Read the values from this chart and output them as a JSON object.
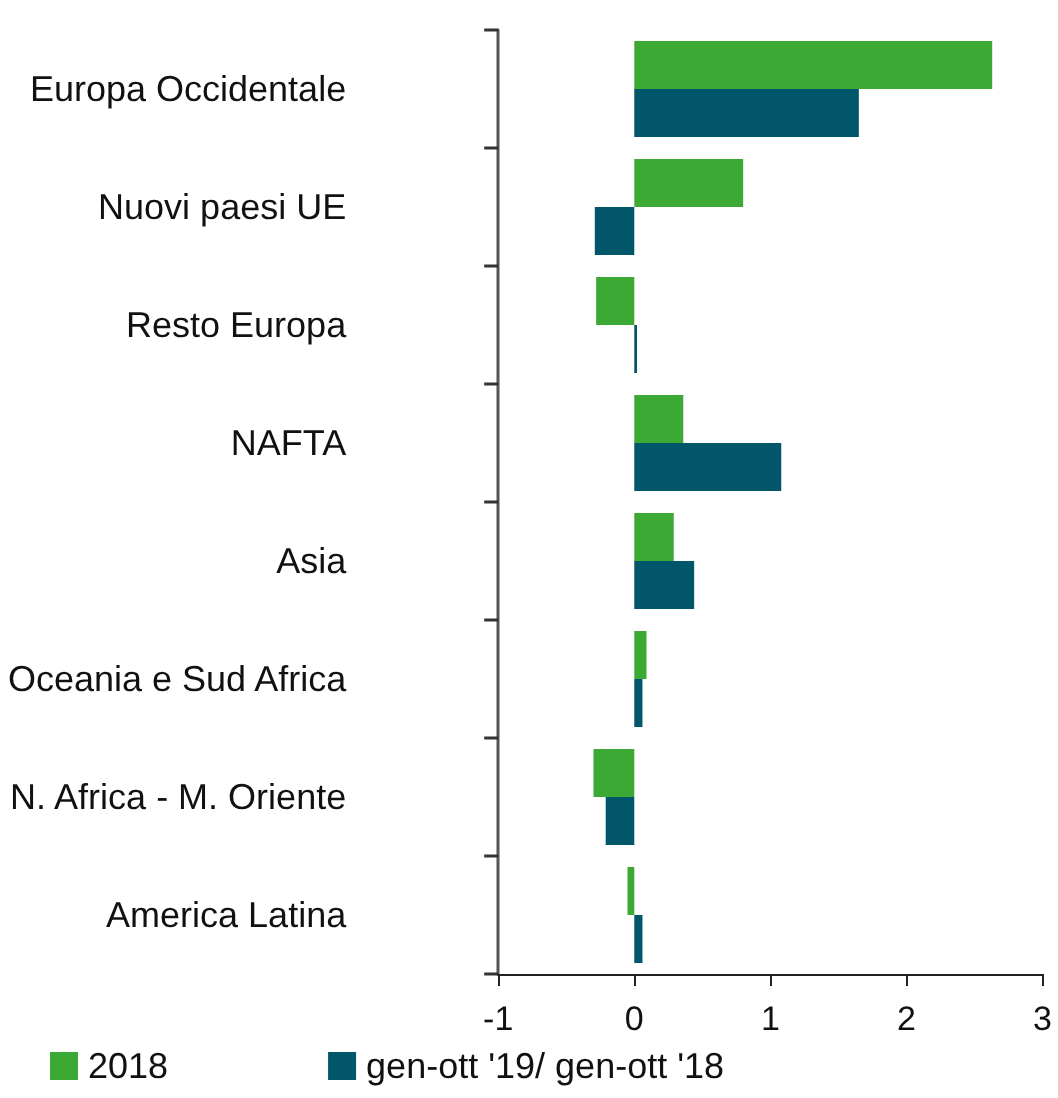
{
  "chart_data": {
    "type": "bar",
    "orientation": "horizontal",
    "categories": [
      "Europa Occidentale",
      "Nuovi paesi UE",
      "Resto Europa",
      "NAFTA",
      "Asia",
      "Oceania e Sud Africa",
      "N. Africa - M. Oriente",
      "America Latina"
    ],
    "series": [
      {
        "name": "2018",
        "color": "#3da935",
        "values": [
          2.63,
          0.8,
          -0.28,
          0.36,
          0.29,
          0.09,
          -0.3,
          -0.05
        ]
      },
      {
        "name": "gen-ott '19/ gen-ott '18",
        "color": "#02566a",
        "values": [
          1.65,
          -0.29,
          0.02,
          1.08,
          0.44,
          0.06,
          -0.21,
          0.06
        ]
      }
    ],
    "xlim": [
      -1,
      3
    ],
    "xticks": [
      -1,
      0,
      1,
      2,
      3
    ],
    "grid": false,
    "legend": "bottom left"
  }
}
